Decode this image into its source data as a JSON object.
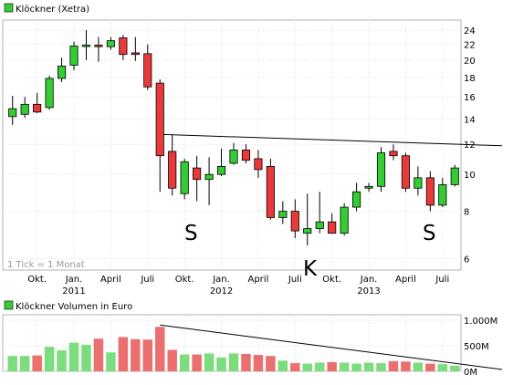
{
  "chart_data": [
    {
      "type": "candlestick",
      "legend": "Klöckner (Xetra)",
      "legend_color": "#33cc33",
      "y_scale": "log",
      "ylim": [
        5.6,
        25.5
      ],
      "y_ticks": [
        24,
        22,
        20,
        18,
        16,
        14,
        12,
        10,
        8,
        6
      ],
      "x_tick_labels": [
        "Okt.",
        "Jan.",
        "April",
        "Juli",
        "Okt.",
        "Jan.",
        "April",
        "Juli",
        "Okt.",
        "Jan.",
        "April",
        "Juli"
      ],
      "year_labels": [
        "2011",
        "2012",
        "2013"
      ],
      "annotation": "1 Tick = 1 Monat",
      "pattern_labels": [
        "S",
        "K",
        "S"
      ],
      "colors": {
        "up": "#33cc33",
        "down": "#e83a3a"
      },
      "candles": [
        {
          "o": 14.2,
          "h": 16.1,
          "l": 13.5,
          "c": 14.9
        },
        {
          "o": 14.4,
          "h": 16.0,
          "l": 14.1,
          "c": 15.3
        },
        {
          "o": 15.3,
          "h": 16.4,
          "l": 14.5,
          "c": 14.6
        },
        {
          "o": 15.0,
          "h": 18.2,
          "l": 14.8,
          "c": 17.9
        },
        {
          "o": 17.9,
          "h": 20.3,
          "l": 17.5,
          "c": 19.3
        },
        {
          "o": 19.4,
          "h": 22.4,
          "l": 18.8,
          "c": 21.8
        },
        {
          "o": 21.8,
          "h": 24.0,
          "l": 20.0,
          "c": 21.9
        },
        {
          "o": 21.9,
          "h": 23.0,
          "l": 19.8,
          "c": 21.7
        },
        {
          "o": 21.7,
          "h": 23.0,
          "l": 21.3,
          "c": 22.5
        },
        {
          "o": 22.9,
          "h": 23.3,
          "l": 20.0,
          "c": 20.7
        },
        {
          "o": 20.9,
          "h": 23.0,
          "l": 19.9,
          "c": 20.7
        },
        {
          "o": 20.8,
          "h": 22.0,
          "l": 16.7,
          "c": 17.0
        },
        {
          "o": 17.4,
          "h": 17.8,
          "l": 9.0,
          "c": 11.2
        },
        {
          "o": 11.5,
          "h": 12.7,
          "l": 8.8,
          "c": 9.2
        },
        {
          "o": 8.9,
          "h": 11.0,
          "l": 8.6,
          "c": 10.8
        },
        {
          "o": 10.4,
          "h": 11.2,
          "l": 8.5,
          "c": 9.7
        },
        {
          "o": 9.7,
          "h": 11.1,
          "l": 8.3,
          "c": 10.0
        },
        {
          "o": 10.0,
          "h": 11.7,
          "l": 9.9,
          "c": 10.5
        },
        {
          "o": 10.7,
          "h": 12.1,
          "l": 10.6,
          "c": 11.6
        },
        {
          "o": 11.6,
          "h": 12.0,
          "l": 10.7,
          "c": 10.9
        },
        {
          "o": 11.0,
          "h": 11.6,
          "l": 9.8,
          "c": 10.3
        },
        {
          "o": 10.5,
          "h": 11.0,
          "l": 7.6,
          "c": 7.7
        },
        {
          "o": 7.7,
          "h": 8.5,
          "l": 7.4,
          "c": 8.0
        },
        {
          "o": 8.0,
          "h": 8.6,
          "l": 6.8,
          "c": 7.1
        },
        {
          "o": 7.0,
          "h": 8.9,
          "l": 6.5,
          "c": 7.2
        },
        {
          "o": 7.2,
          "h": 9.0,
          "l": 7.0,
          "c": 7.5
        },
        {
          "o": 7.5,
          "h": 7.9,
          "l": 7.0,
          "c": 7.0
        },
        {
          "o": 7.0,
          "h": 8.4,
          "l": 6.9,
          "c": 8.2
        },
        {
          "o": 8.2,
          "h": 9.5,
          "l": 8.0,
          "c": 9.0
        },
        {
          "o": 9.2,
          "h": 9.5,
          "l": 9.0,
          "c": 9.3
        },
        {
          "o": 9.3,
          "h": 11.8,
          "l": 9.0,
          "c": 11.4
        },
        {
          "o": 11.5,
          "h": 12.0,
          "l": 10.9,
          "c": 11.2
        },
        {
          "o": 11.2,
          "h": 11.4,
          "l": 9.0,
          "c": 9.2
        },
        {
          "o": 9.2,
          "h": 10.5,
          "l": 8.8,
          "c": 9.8
        },
        {
          "o": 9.8,
          "h": 10.2,
          "l": 8.0,
          "c": 8.3
        },
        {
          "o": 8.3,
          "h": 9.8,
          "l": 8.2,
          "c": 9.4
        },
        {
          "o": 9.4,
          "h": 10.6,
          "l": 9.3,
          "c": 10.4
        }
      ]
    },
    {
      "type": "bar",
      "legend": "Klöckner Volumen in Euro",
      "legend_color": "#33cc33",
      "ylim": [
        0,
        1000
      ],
      "y_tick_labels": [
        "1.000M",
        "500M",
        "0M"
      ],
      "colors": {
        "up": "#7ddc7d",
        "down": "#ec6f6f"
      },
      "values": [
        300,
        300,
        310,
        480,
        410,
        560,
        520,
        640,
        370,
        670,
        630,
        620,
        870,
        420,
        330,
        330,
        350,
        270,
        350,
        340,
        320,
        300,
        210,
        160,
        150,
        170,
        180,
        170,
        150,
        170,
        160,
        200,
        190,
        170,
        150,
        140,
        110
      ]
    }
  ]
}
